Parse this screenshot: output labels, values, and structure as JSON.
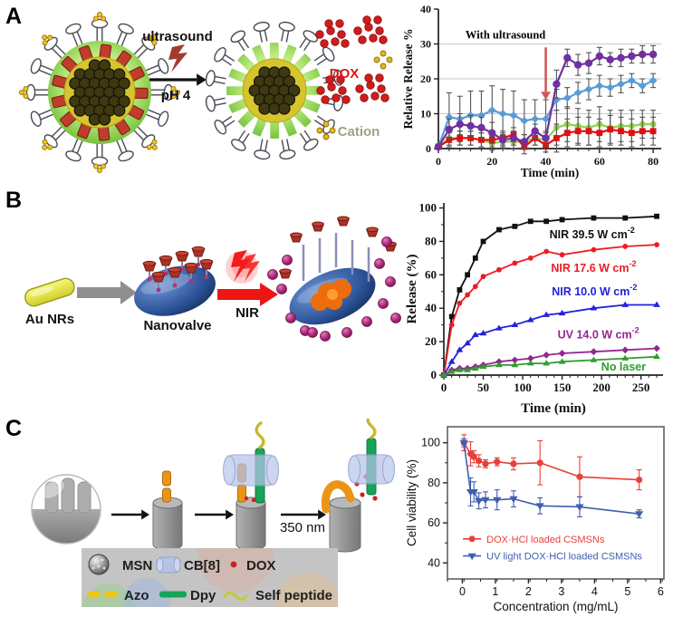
{
  "panels": {
    "a": {
      "letter": "A",
      "labels": {
        "ultrasound": "ultrasound",
        "ph": "pH 4",
        "dox": "DOX",
        "cation": "Cation"
      }
    },
    "b": {
      "letter": "B",
      "labels": {
        "aunrs": "Au NRs",
        "nanovalve": "Nanovalve",
        "nir": "NIR"
      }
    },
    "c": {
      "letter": "C",
      "labels": {
        "wavelength": "350 nm",
        "legend_msn": "MSN",
        "legend_cb8": "CB[8]",
        "legend_dox": "DOX",
        "legend_azo": "Azo",
        "legend_dpy": "Dpy",
        "legend_self": "Self peptide"
      }
    }
  },
  "chart_data": [
    {
      "id": "chartA",
      "type": "line",
      "panel": "A",
      "xlabel": "Time (min)",
      "ylabel": "Relative Release %",
      "xlim": [
        0,
        83
      ],
      "ylim": [
        0,
        40
      ],
      "xticks": [
        0,
        20,
        40,
        60,
        80
      ],
      "yticks": [
        0,
        10,
        20,
        30,
        40
      ],
      "minor_x": 4,
      "grid_y": [
        10,
        20,
        30
      ],
      "font": "serif",
      "tick_size": 12,
      "label_size": 13.5,
      "line_width": 2.2,
      "msize": 3.4,
      "err_color": "#555555",
      "margin": {
        "l": 44,
        "r": 12,
        "t": 8,
        "b": 36
      },
      "x": [
        0,
        4,
        8,
        12,
        16,
        20,
        24,
        28,
        32,
        36,
        40,
        44,
        48,
        52,
        56,
        60,
        64,
        68,
        72,
        76,
        80
      ],
      "series": [
        {
          "name": "blue",
          "color": "#5b9bd5",
          "marker": "diamond",
          "values": [
            0.5,
            9,
            8.5,
            9.5,
            9.5,
            11,
            10,
            9.5,
            8,
            8.5,
            8.5,
            14,
            14.5,
            16,
            17,
            18,
            17.5,
            18.5,
            19.5,
            18,
            19.5
          ],
          "err": [
            0.5,
            7,
            6.5,
            7,
            7,
            7,
            7,
            7,
            6,
            5.5,
            5.5,
            3,
            3,
            3,
            3,
            3,
            2.5,
            2.5,
            2,
            2,
            2
          ]
        },
        {
          "name": "green",
          "color": "#92d050",
          "marker": "circle",
          "values": [
            0.5,
            3,
            3,
            3,
            2.5,
            1.5,
            2,
            2,
            2,
            3,
            2.5,
            6,
            7,
            6.5,
            6,
            7,
            6,
            6.5,
            6.5,
            7,
            7
          ],
          "err": [
            0.5,
            2,
            2,
            2,
            2,
            2,
            2,
            2,
            2,
            2,
            2,
            5,
            5,
            5,
            5,
            5,
            5,
            4.5,
            4.5,
            4,
            4
          ]
        },
        {
          "name": "red",
          "color": "#e01010",
          "marker": "square",
          "values": [
            0.5,
            2.5,
            3,
            3,
            2.5,
            2.5,
            3,
            4,
            0.5,
            3,
            1,
            3,
            4.5,
            5,
            5,
            4.5,
            5.5,
            5,
            4.5,
            5,
            5
          ],
          "err": [
            0.5,
            2,
            2,
            2,
            2,
            2,
            2,
            2,
            2,
            2,
            2,
            4,
            4,
            4,
            4,
            4,
            4,
            4,
            4,
            4,
            4
          ]
        },
        {
          "name": "purple",
          "color": "#7030a0",
          "marker": "circle",
          "msize": 4.2,
          "values": [
            0.5,
            5.5,
            7,
            6.5,
            6,
            4.5,
            2.5,
            3,
            2,
            5,
            3,
            18.5,
            26,
            24,
            24.5,
            26.5,
            25.5,
            26,
            26.5,
            27,
            27
          ],
          "err": [
            0.5,
            3,
            3,
            3,
            3,
            3,
            2,
            2,
            2,
            2,
            2,
            4,
            2.5,
            3,
            3,
            2.5,
            2,
            2.5,
            2,
            2.5,
            2.5
          ]
        }
      ],
      "annotation": {
        "text": "With ultrasound",
        "tx": 25,
        "ty": 31.5,
        "ax": 40,
        "ay1": 29,
        "ay2": 14,
        "arrow_color": "#d05858"
      }
    },
    {
      "id": "chartB",
      "type": "line",
      "panel": "B",
      "xlabel": "Time (min)",
      "ylabel": "Release (%)",
      "xlim": [
        0,
        278
      ],
      "ylim": [
        0,
        103
      ],
      "xticks": [
        0,
        50,
        100,
        150,
        200,
        250
      ],
      "yticks": [
        0,
        20,
        40,
        60,
        80,
        100
      ],
      "minor_x": 10,
      "minor_y": 10,
      "font": "serif",
      "tick_size": 13,
      "label_size": 15,
      "line_width": 1.8,
      "msize": 2.9,
      "margin": {
        "l": 46,
        "r": 10,
        "t": 12,
        "b": 46
      },
      "x": [
        0,
        10,
        20,
        30,
        40,
        50,
        70,
        90,
        110,
        130,
        150,
        190,
        230,
        270
      ],
      "series": [
        {
          "name": "NIR 39.5 W cm⁻²",
          "color": "#111111",
          "marker": "square",
          "values": [
            0,
            35,
            51,
            60,
            70,
            80,
            87,
            89,
            92,
            92,
            93,
            94,
            94,
            95
          ],
          "label": {
            "text": "NIR 39.5 W cm",
            "sup": "-2",
            "x": 188,
            "y": 84
          }
        },
        {
          "name": "NIR 17.6 W cm⁻²",
          "color": "#ed1c24",
          "marker": "circle",
          "values": [
            0,
            30,
            43,
            48,
            53,
            59,
            63,
            67,
            70,
            74,
            72,
            75,
            77,
            78
          ],
          "label": {
            "text": "NIR 17.6 W cm",
            "sup": "-2",
            "x": 190,
            "y": 64
          }
        },
        {
          "name": "NIR 10.0 W cm⁻²",
          "color": "#2222dd",
          "marker": "triangle",
          "values": [
            0,
            8,
            15,
            19,
            24,
            25,
            28,
            30,
            33,
            36,
            37,
            40,
            42,
            42
          ],
          "label": {
            "text": "NIR 10.0 W cm",
            "sup": "-2",
            "x": 191,
            "y": 50
          }
        },
        {
          "name": "UV 14.0 W cm⁻²",
          "color": "#93278f",
          "marker": "diamond",
          "values": [
            0,
            3,
            4,
            4,
            5,
            6,
            8,
            9,
            10,
            12,
            13,
            14,
            15,
            16
          ],
          "label": {
            "text": "UV 14.0 W cm",
            "sup": "-2",
            "x": 196,
            "y": 24
          }
        },
        {
          "name": "No laser",
          "color": "#2e9e2e",
          "marker": "triangle",
          "values": [
            0,
            2,
            3,
            3,
            4,
            5,
            6,
            6,
            7,
            7,
            8,
            9,
            10,
            11
          ],
          "label": {
            "text": "No laser",
            "x": 228,
            "y": 5
          }
        }
      ]
    },
    {
      "id": "chartC",
      "type": "line",
      "panel": "C",
      "xlabel": "Concentration (mg/mL)",
      "ylabel": "Cell viability (%)",
      "xlim": [
        -0.45,
        6.1
      ],
      "ylim": [
        32,
        108
      ],
      "xticks": [
        0,
        1,
        2,
        3,
        4,
        5,
        6
      ],
      "yticks": [
        40,
        60,
        80,
        100
      ],
      "minor_x": 0.5,
      "minor_y": 10,
      "box": true,
      "font": "sans",
      "tick_size": 12.5,
      "label_size": 13.5,
      "line_width": 1.6,
      "msize": 3.6,
      "margin": {
        "l": 50,
        "r": 9,
        "t": 10,
        "b": 40
      },
      "x": [
        0.05,
        0.25,
        0.35,
        0.5,
        0.7,
        1.05,
        1.55,
        2.35,
        3.55,
        5.35
      ],
      "series": [
        {
          "name": "DOX·HCl loaded CSMSNs",
          "color": "#e8403c",
          "marker": "circle",
          "values": [
            100,
            94.5,
            93,
            91,
            89.5,
            90.5,
            89.5,
            90,
            83,
            81.5
          ],
          "err": [
            4,
            6,
            3,
            3,
            2,
            2,
            3,
            11,
            10,
            5
          ]
        },
        {
          "name": "UV light DOX·HCl loaded CSMSNs",
          "color": "#3f5fae",
          "marker": "triangle-down",
          "values": [
            100,
            75.5,
            75.5,
            71,
            71.5,
            71.5,
            72,
            68.5,
            68,
            64.5
          ],
          "err": [
            2,
            7,
            5,
            4,
            4,
            5,
            4,
            4,
            5,
            2
          ]
        }
      ],
      "legend": {
        "x": 0.02,
        "y": 52,
        "dy": 8.5
      }
    }
  ]
}
